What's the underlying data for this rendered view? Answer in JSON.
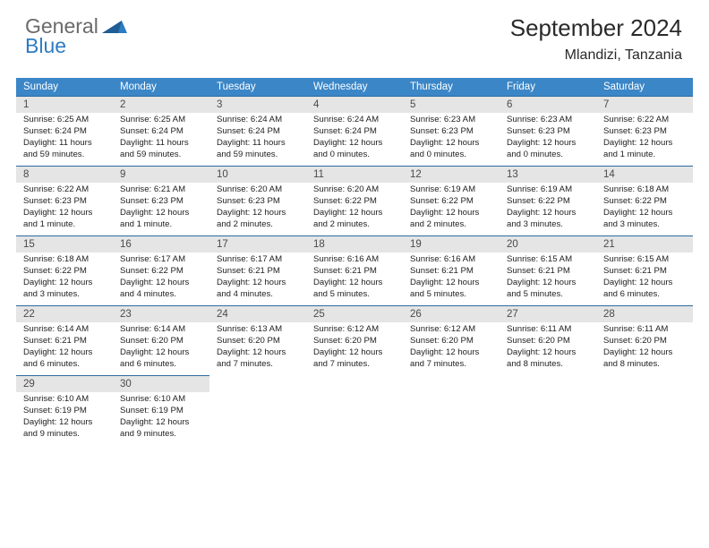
{
  "logo": {
    "word1": "General",
    "word2": "Blue"
  },
  "colors": {
    "header_bar": "#3b86c7",
    "header_border": "#2e6aa0",
    "daynum_bg": "#e5e5e5",
    "logo_gray": "#6a6a6a",
    "logo_blue": "#2e7cc2",
    "page_bg": "#ffffff",
    "text": "#222222"
  },
  "title": "September 2024",
  "location": "Mlandizi, Tanzania",
  "days_of_week": [
    "Sunday",
    "Monday",
    "Tuesday",
    "Wednesday",
    "Thursday",
    "Friday",
    "Saturday"
  ],
  "weeks": [
    [
      {
        "n": "1",
        "sunrise": "Sunrise: 6:25 AM",
        "sunset": "Sunset: 6:24 PM",
        "daylight": "Daylight: 11 hours and 59 minutes."
      },
      {
        "n": "2",
        "sunrise": "Sunrise: 6:25 AM",
        "sunset": "Sunset: 6:24 PM",
        "daylight": "Daylight: 11 hours and 59 minutes."
      },
      {
        "n": "3",
        "sunrise": "Sunrise: 6:24 AM",
        "sunset": "Sunset: 6:24 PM",
        "daylight": "Daylight: 11 hours and 59 minutes."
      },
      {
        "n": "4",
        "sunrise": "Sunrise: 6:24 AM",
        "sunset": "Sunset: 6:24 PM",
        "daylight": "Daylight: 12 hours and 0 minutes."
      },
      {
        "n": "5",
        "sunrise": "Sunrise: 6:23 AM",
        "sunset": "Sunset: 6:23 PM",
        "daylight": "Daylight: 12 hours and 0 minutes."
      },
      {
        "n": "6",
        "sunrise": "Sunrise: 6:23 AM",
        "sunset": "Sunset: 6:23 PM",
        "daylight": "Daylight: 12 hours and 0 minutes."
      },
      {
        "n": "7",
        "sunrise": "Sunrise: 6:22 AM",
        "sunset": "Sunset: 6:23 PM",
        "daylight": "Daylight: 12 hours and 1 minute."
      }
    ],
    [
      {
        "n": "8",
        "sunrise": "Sunrise: 6:22 AM",
        "sunset": "Sunset: 6:23 PM",
        "daylight": "Daylight: 12 hours and 1 minute."
      },
      {
        "n": "9",
        "sunrise": "Sunrise: 6:21 AM",
        "sunset": "Sunset: 6:23 PM",
        "daylight": "Daylight: 12 hours and 1 minute."
      },
      {
        "n": "10",
        "sunrise": "Sunrise: 6:20 AM",
        "sunset": "Sunset: 6:23 PM",
        "daylight": "Daylight: 12 hours and 2 minutes."
      },
      {
        "n": "11",
        "sunrise": "Sunrise: 6:20 AM",
        "sunset": "Sunset: 6:22 PM",
        "daylight": "Daylight: 12 hours and 2 minutes."
      },
      {
        "n": "12",
        "sunrise": "Sunrise: 6:19 AM",
        "sunset": "Sunset: 6:22 PM",
        "daylight": "Daylight: 12 hours and 2 minutes."
      },
      {
        "n": "13",
        "sunrise": "Sunrise: 6:19 AM",
        "sunset": "Sunset: 6:22 PM",
        "daylight": "Daylight: 12 hours and 3 minutes."
      },
      {
        "n": "14",
        "sunrise": "Sunrise: 6:18 AM",
        "sunset": "Sunset: 6:22 PM",
        "daylight": "Daylight: 12 hours and 3 minutes."
      }
    ],
    [
      {
        "n": "15",
        "sunrise": "Sunrise: 6:18 AM",
        "sunset": "Sunset: 6:22 PM",
        "daylight": "Daylight: 12 hours and 3 minutes."
      },
      {
        "n": "16",
        "sunrise": "Sunrise: 6:17 AM",
        "sunset": "Sunset: 6:22 PM",
        "daylight": "Daylight: 12 hours and 4 minutes."
      },
      {
        "n": "17",
        "sunrise": "Sunrise: 6:17 AM",
        "sunset": "Sunset: 6:21 PM",
        "daylight": "Daylight: 12 hours and 4 minutes."
      },
      {
        "n": "18",
        "sunrise": "Sunrise: 6:16 AM",
        "sunset": "Sunset: 6:21 PM",
        "daylight": "Daylight: 12 hours and 5 minutes."
      },
      {
        "n": "19",
        "sunrise": "Sunrise: 6:16 AM",
        "sunset": "Sunset: 6:21 PM",
        "daylight": "Daylight: 12 hours and 5 minutes."
      },
      {
        "n": "20",
        "sunrise": "Sunrise: 6:15 AM",
        "sunset": "Sunset: 6:21 PM",
        "daylight": "Daylight: 12 hours and 5 minutes."
      },
      {
        "n": "21",
        "sunrise": "Sunrise: 6:15 AM",
        "sunset": "Sunset: 6:21 PM",
        "daylight": "Daylight: 12 hours and 6 minutes."
      }
    ],
    [
      {
        "n": "22",
        "sunrise": "Sunrise: 6:14 AM",
        "sunset": "Sunset: 6:21 PM",
        "daylight": "Daylight: 12 hours and 6 minutes."
      },
      {
        "n": "23",
        "sunrise": "Sunrise: 6:14 AM",
        "sunset": "Sunset: 6:20 PM",
        "daylight": "Daylight: 12 hours and 6 minutes."
      },
      {
        "n": "24",
        "sunrise": "Sunrise: 6:13 AM",
        "sunset": "Sunset: 6:20 PM",
        "daylight": "Daylight: 12 hours and 7 minutes."
      },
      {
        "n": "25",
        "sunrise": "Sunrise: 6:12 AM",
        "sunset": "Sunset: 6:20 PM",
        "daylight": "Daylight: 12 hours and 7 minutes."
      },
      {
        "n": "26",
        "sunrise": "Sunrise: 6:12 AM",
        "sunset": "Sunset: 6:20 PM",
        "daylight": "Daylight: 12 hours and 7 minutes."
      },
      {
        "n": "27",
        "sunrise": "Sunrise: 6:11 AM",
        "sunset": "Sunset: 6:20 PM",
        "daylight": "Daylight: 12 hours and 8 minutes."
      },
      {
        "n": "28",
        "sunrise": "Sunrise: 6:11 AM",
        "sunset": "Sunset: 6:20 PM",
        "daylight": "Daylight: 12 hours and 8 minutes."
      }
    ],
    [
      {
        "n": "29",
        "sunrise": "Sunrise: 6:10 AM",
        "sunset": "Sunset: 6:19 PM",
        "daylight": "Daylight: 12 hours and 9 minutes."
      },
      {
        "n": "30",
        "sunrise": "Sunrise: 6:10 AM",
        "sunset": "Sunset: 6:19 PM",
        "daylight": "Daylight: 12 hours and 9 minutes."
      },
      null,
      null,
      null,
      null,
      null
    ]
  ]
}
